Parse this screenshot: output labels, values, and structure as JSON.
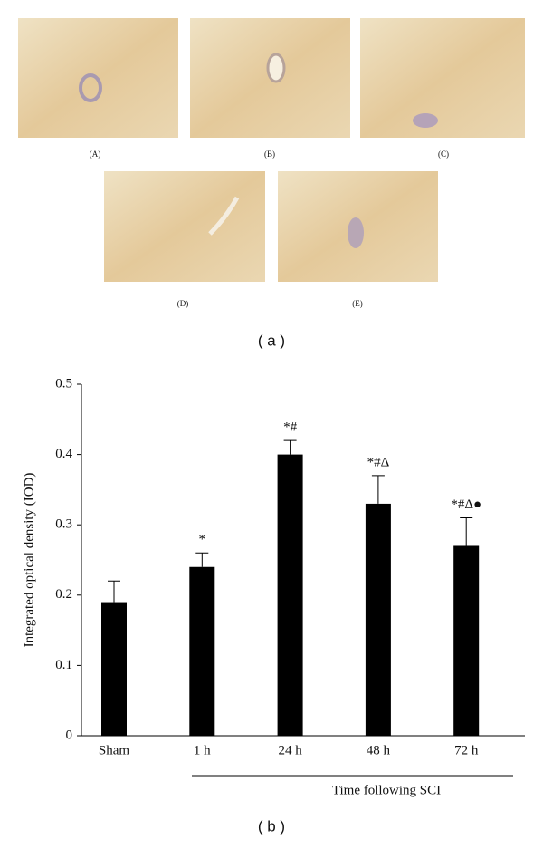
{
  "panel_a": {
    "caption": "( a )",
    "images": [
      "(A)",
      "(B)",
      "(C)",
      "(D)",
      "(E)"
    ]
  },
  "chart_data": {
    "type": "bar",
    "caption": "( b )",
    "y_label": "Integrated optical density (IOD)",
    "x_label": "Time following SCI",
    "categories": [
      "Sham",
      "1 h",
      "24 h",
      "48 h",
      "72 h"
    ],
    "values": [
      0.19,
      0.24,
      0.4,
      0.33,
      0.27
    ],
    "errors": [
      0.03,
      0.02,
      0.02,
      0.04,
      0.04
    ],
    "annotations": [
      "*",
      "*#",
      "*#Δ",
      "*#Δ●"
    ],
    "color": "#000000",
    "ylim": [
      0,
      0.5
    ],
    "yticks": [
      0,
      0.1,
      0.2,
      0.3,
      0.4,
      0.5
    ]
  }
}
